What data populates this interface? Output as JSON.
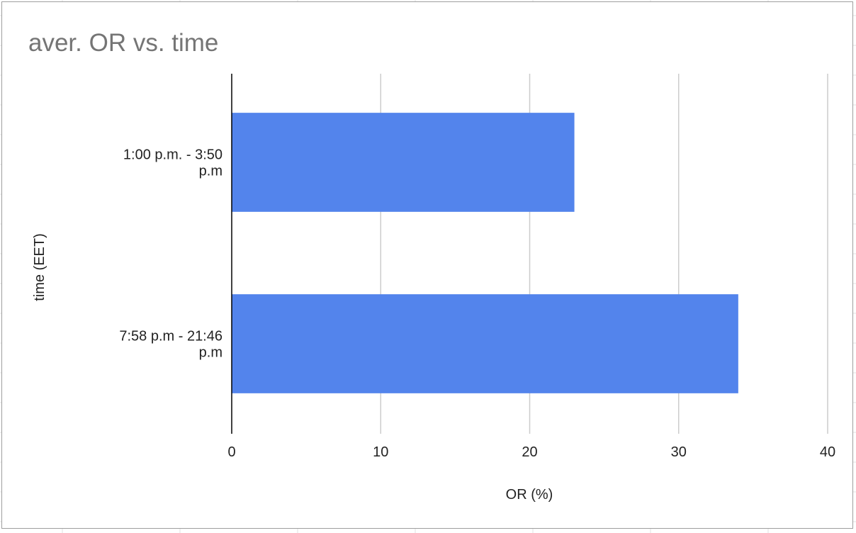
{
  "chart_data": {
    "type": "bar",
    "orientation": "horizontal",
    "title": "aver. OR vs. time",
    "xlabel": "OR (%)",
    "ylabel": "time (EET)",
    "categories": [
      [
        "1:00 p.m. - 3:50",
        "p.m"
      ],
      [
        "7:58 p.m - 21:46",
        "p.m"
      ]
    ],
    "values": [
      23,
      34
    ],
    "xlim": [
      0,
      40
    ],
    "xticks": [
      "0",
      "10",
      "20",
      "30",
      "40"
    ],
    "grid": true,
    "legend": "none",
    "bar_color": "#5384ec",
    "gridline_color": "#cccccc",
    "axis_color": "#000000",
    "title_color": "#757575"
  }
}
